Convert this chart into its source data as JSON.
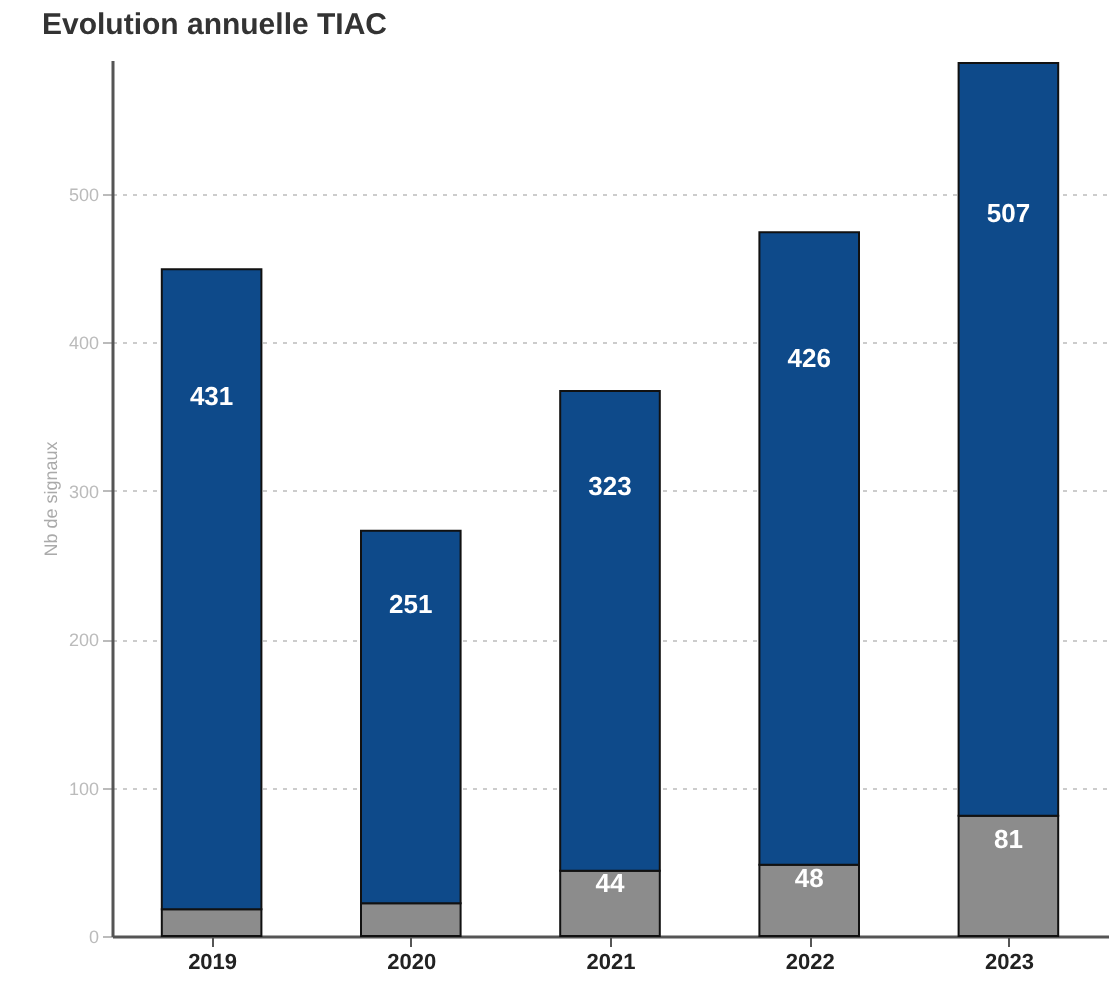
{
  "chart_data": {
    "type": "bar",
    "title": "Evolution annuelle TIAC",
    "ylabel": "Nb de signaux",
    "categories": [
      "2019",
      "2020",
      "2021",
      "2022",
      "2023"
    ],
    "stacked": true,
    "series": [
      {
        "color": "#8c8c8c",
        "values": [
          18,
          22,
          44,
          48,
          81
        ],
        "value_labels": [
          null,
          null,
          "44",
          "48",
          "81"
        ]
      },
      {
        "color": "#0e4a8a",
        "values": [
          431,
          251,
          323,
          426,
          507
        ],
        "value_labels": [
          "431",
          "251",
          "323",
          "426",
          "507"
        ]
      }
    ],
    "ylim": [
      0,
      590
    ],
    "yticks": [
      0,
      100,
      200,
      300,
      400,
      500
    ],
    "grid": "y"
  }
}
